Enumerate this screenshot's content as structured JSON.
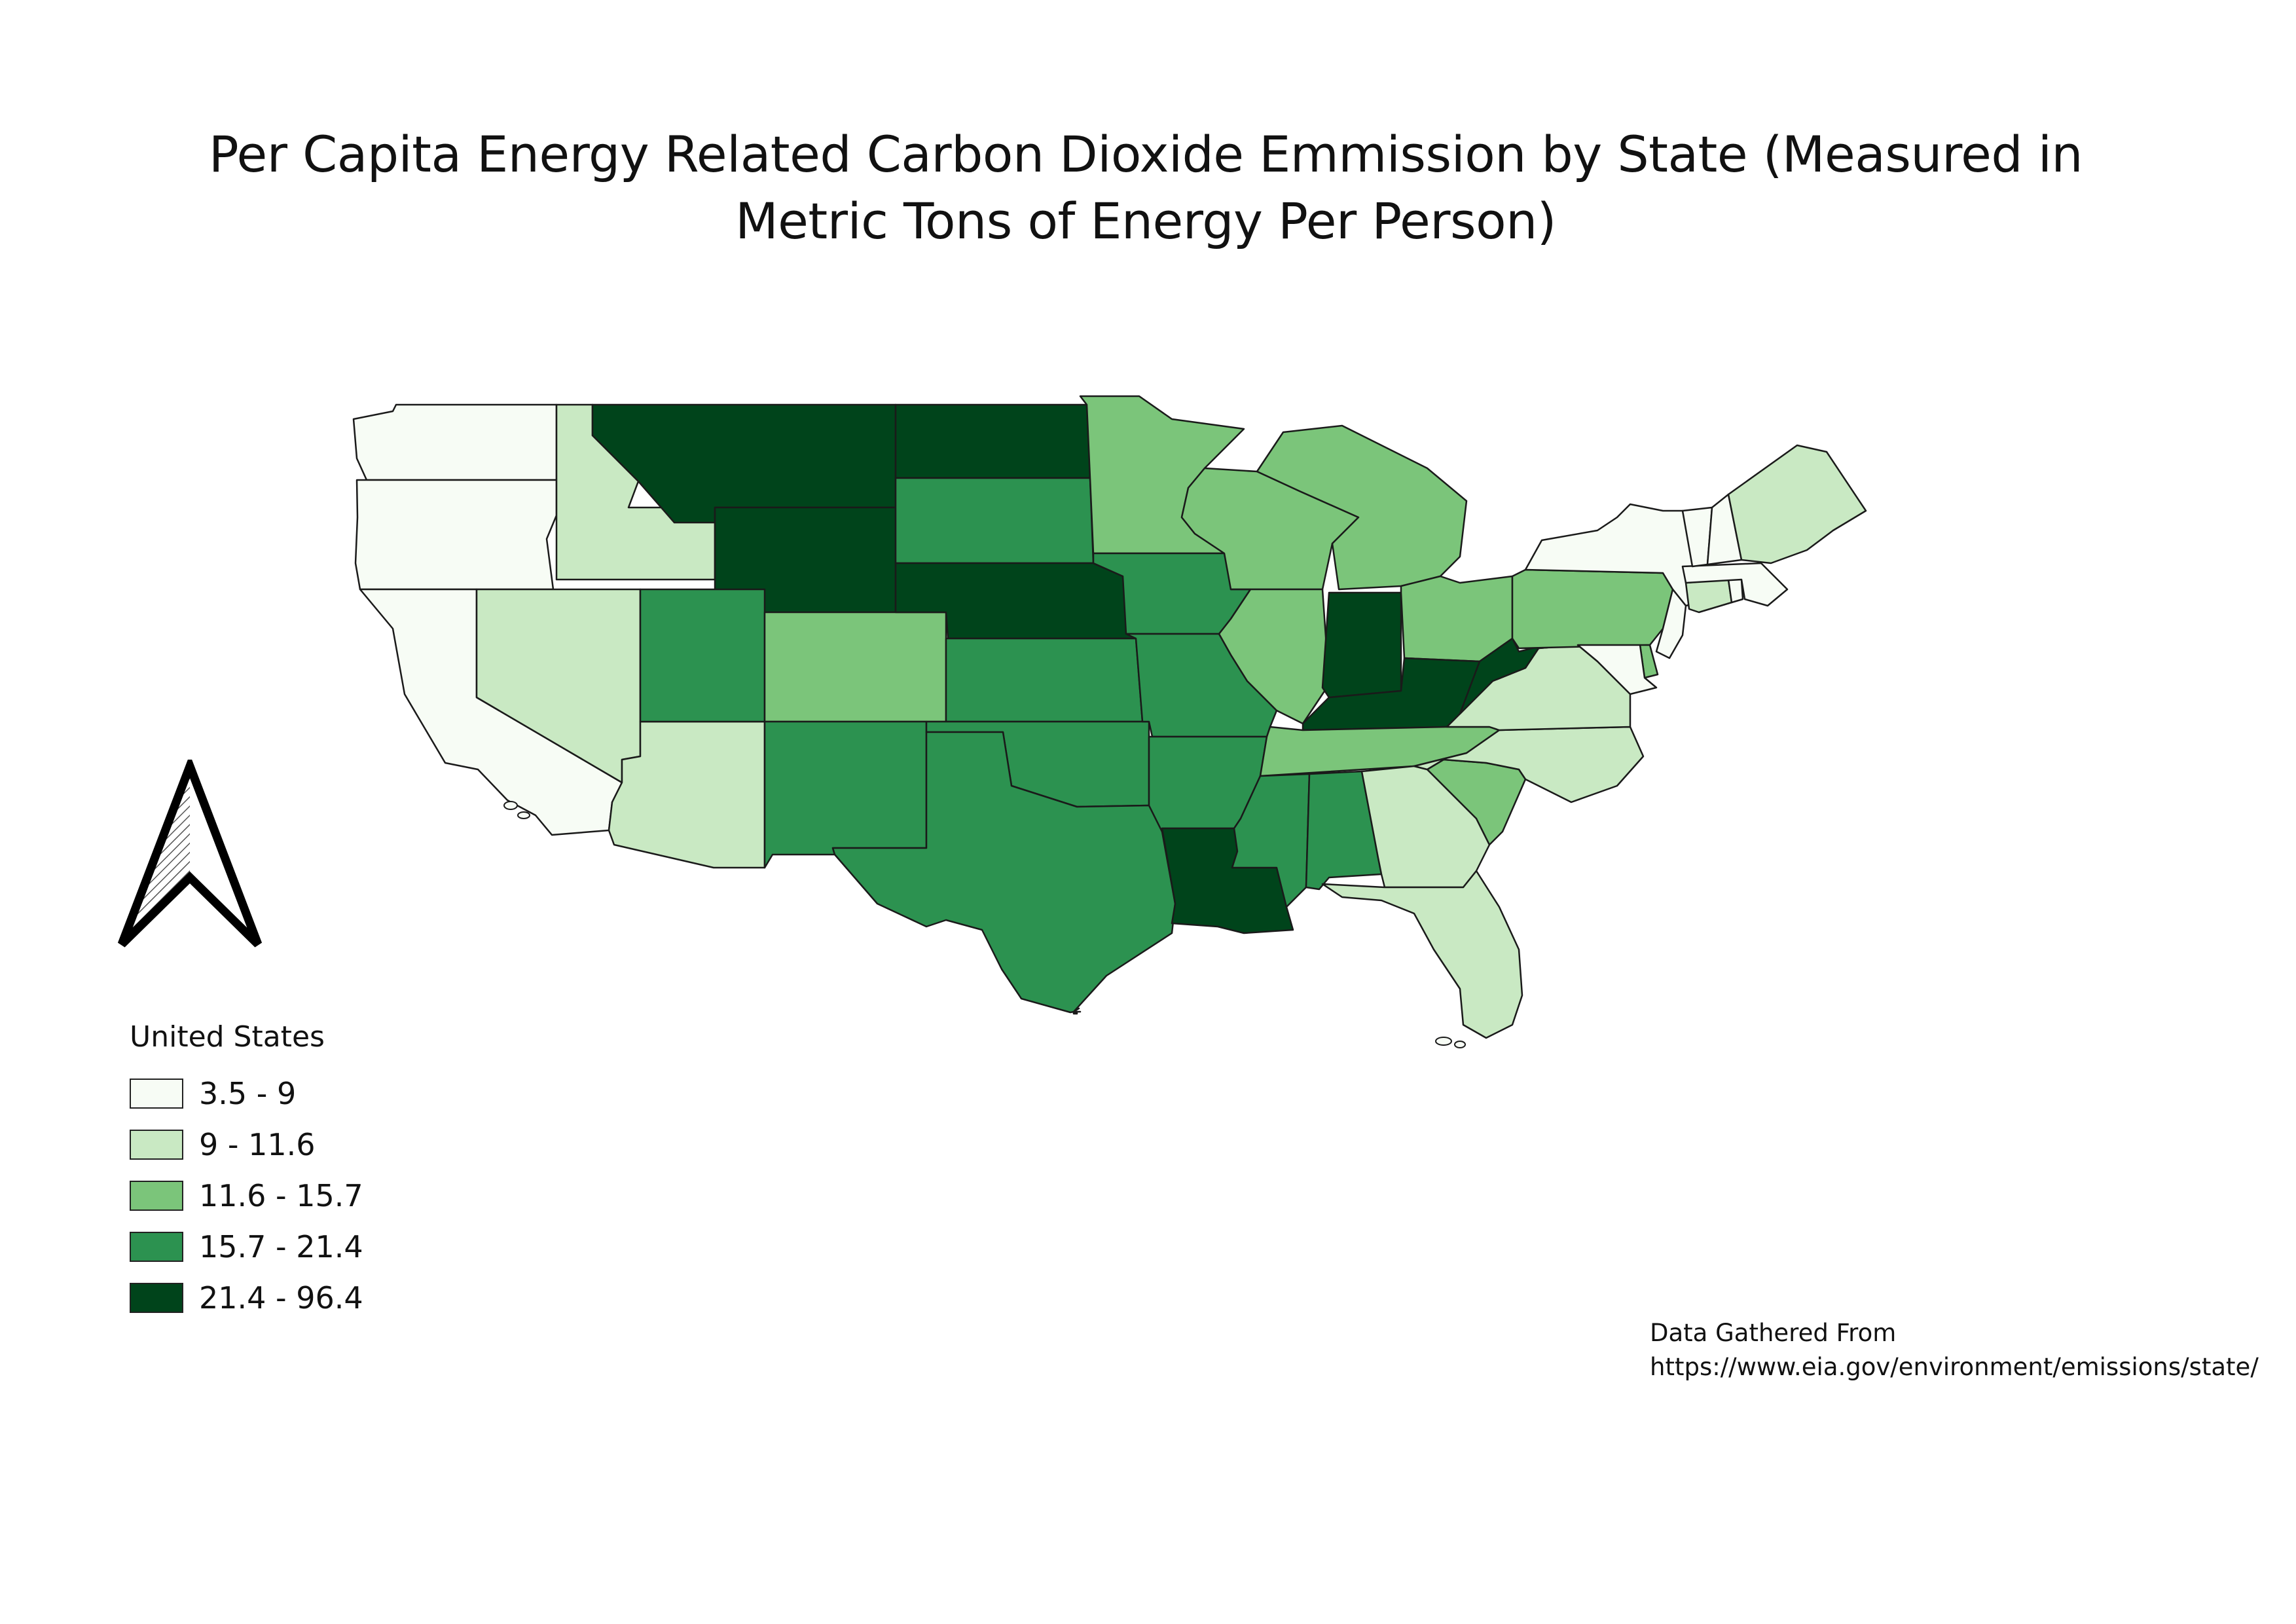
{
  "title_lines": [
    "Per Capita Energy Related Carbon Dioxide Emmission by State (Measured in",
    "Metric Tons of Energy Per Person)"
  ],
  "legend": {
    "title": "United States",
    "items": [
      {
        "label": "3.5 - 9",
        "color": "#f7fcf5"
      },
      {
        "label": "9 - 11.6",
        "color": "#c9e9c3"
      },
      {
        "label": "11.6 - 15.7",
        "color": "#7bc57a"
      },
      {
        "label": "15.7 - 21.4",
        "color": "#2c9250"
      },
      {
        "label": "21.4 - 96.4",
        "color": "#00441b"
      }
    ]
  },
  "source": {
    "line1": "Data Gathered From",
    "line2": "https://www.eia.gov/environment/emissions/state/"
  },
  "states": [
    {
      "id": "WA",
      "class": 0
    },
    {
      "id": "OR",
      "class": 0
    },
    {
      "id": "CA",
      "class": 0
    },
    {
      "id": "ID",
      "class": 1
    },
    {
      "id": "NV",
      "class": 1
    },
    {
      "id": "AZ",
      "class": 1
    },
    {
      "id": "MT",
      "class": 4
    },
    {
      "id": "WY",
      "class": 4
    },
    {
      "id": "UT",
      "class": 3
    },
    {
      "id": "CO",
      "class": 2
    },
    {
      "id": "NM",
      "class": 3
    },
    {
      "id": "ND",
      "class": 4
    },
    {
      "id": "SD",
      "class": 3
    },
    {
      "id": "NE",
      "class": 4
    },
    {
      "id": "KS",
      "class": 3
    },
    {
      "id": "OK",
      "class": 3
    },
    {
      "id": "TX",
      "class": 3
    },
    {
      "id": "MN",
      "class": 2
    },
    {
      "id": "IA",
      "class": 3
    },
    {
      "id": "MO",
      "class": 3
    },
    {
      "id": "AR",
      "class": 3
    },
    {
      "id": "LA",
      "class": 4
    },
    {
      "id": "WI",
      "class": 2
    },
    {
      "id": "IL",
      "class": 2
    },
    {
      "id": "MI",
      "class": 2
    },
    {
      "id": "IN",
      "class": 4
    },
    {
      "id": "OH",
      "class": 2
    },
    {
      "id": "KY",
      "class": 4
    },
    {
      "id": "TN",
      "class": 2
    },
    {
      "id": "MS",
      "class": 3
    },
    {
      "id": "AL",
      "class": 3
    },
    {
      "id": "GA",
      "class": 1
    },
    {
      "id": "FL",
      "class": 1
    },
    {
      "id": "SC",
      "class": 2
    },
    {
      "id": "NC",
      "class": 1
    },
    {
      "id": "VA",
      "class": 1
    },
    {
      "id": "WV",
      "class": 4
    },
    {
      "id": "PA",
      "class": 2
    },
    {
      "id": "NY",
      "class": 0
    },
    {
      "id": "NJ",
      "class": 0
    },
    {
      "id": "DE",
      "class": 2
    },
    {
      "id": "MD",
      "class": 0
    },
    {
      "id": "CT",
      "class": 1
    },
    {
      "id": "RI",
      "class": 0
    },
    {
      "id": "MA",
      "class": 0
    },
    {
      "id": "VT",
      "class": 0
    },
    {
      "id": "NH",
      "class": 0
    },
    {
      "id": "ME",
      "class": 1
    }
  ]
}
